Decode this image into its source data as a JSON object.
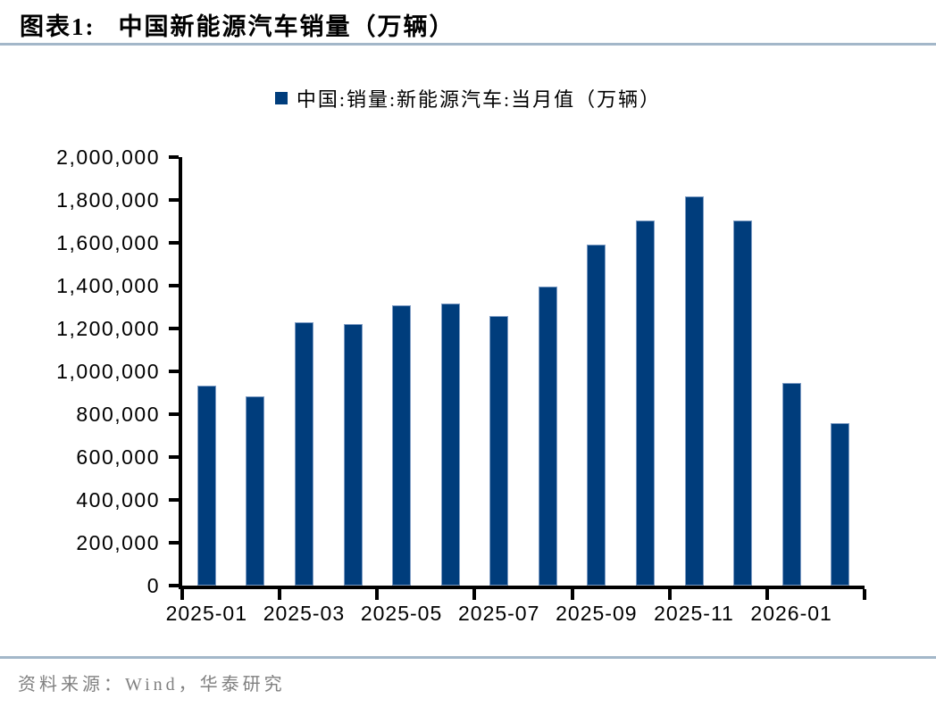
{
  "header": {
    "label": "图表1:",
    "title": "中国新能源汽车销量（万辆）"
  },
  "legend": {
    "marker_color": "#003d7c",
    "label": "中国:销量:新能源汽车:当月值（万辆）"
  },
  "chart_data": {
    "type": "bar",
    "title": "中国新能源汽车销量（万辆）",
    "series_name": "中国:销量:新能源汽车:当月值（万辆）",
    "categories": [
      "2025-01",
      "2025-02",
      "2025-03",
      "2025-04",
      "2025-05",
      "2025-06",
      "2025-07",
      "2025-08",
      "2025-09",
      "2025-10",
      "2025-11",
      "2025-12",
      "2026-01",
      "2026-02"
    ],
    "values": [
      935000,
      885000,
      1230000,
      1220000,
      1307000,
      1317000,
      1257000,
      1396000,
      1592000,
      1706000,
      1817000,
      1706000,
      945000,
      758000
    ],
    "xlabel": "",
    "ylabel": "",
    "ylim": [
      0,
      2000000
    ],
    "y_tick_step": 200000,
    "x_label_every": 2,
    "bar_color": "#003d7c",
    "grid": false,
    "legend_position": "top-center"
  },
  "footer": {
    "source": "资料来源：Wind，华泰研究"
  }
}
